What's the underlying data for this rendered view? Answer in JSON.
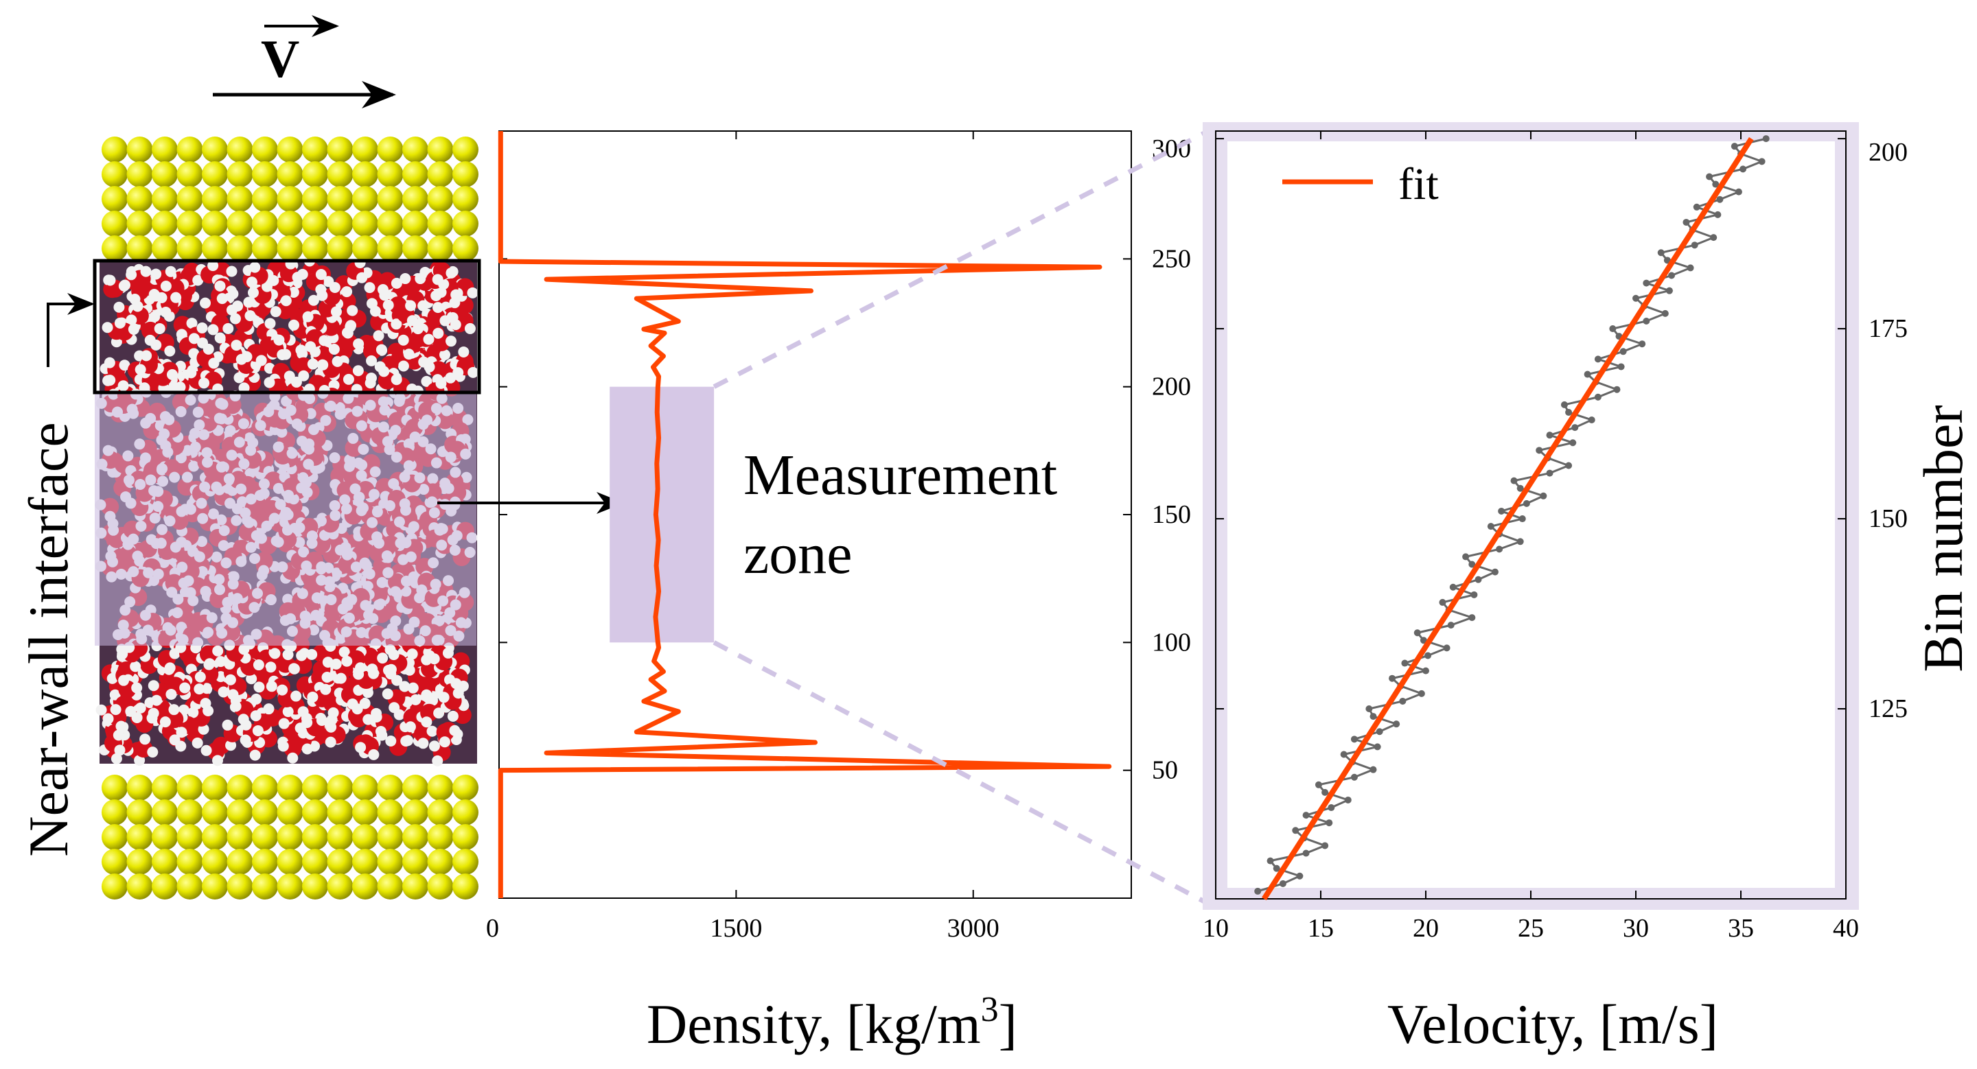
{
  "illustration": {
    "velocity_symbol": "V",
    "near_wall_label": "Near-wall interface",
    "measurement_label_line1": "Measurement",
    "measurement_label_line2": "zone",
    "colors": {
      "gold": "#e8e800",
      "oxygen": "#d4101c",
      "hydrogen": "#f2f2f2",
      "zone": "#d6c8e6",
      "frame": "#e6dff0"
    }
  },
  "chart_data": [
    {
      "type": "line",
      "name": "density-profile",
      "xlabel_main": "Density, [kg/m",
      "xlabel_sup": "3",
      "xlabel_end": "]",
      "ylabel": "",
      "xlim": [
        0,
        4000
      ],
      "ylim": [
        0,
        300
      ],
      "xticks": [
        0,
        1500,
        3000
      ],
      "yticks": [
        50,
        100,
        150,
        200,
        250,
        300
      ],
      "xtick_labels": [
        "0",
        "1500",
        "3000"
      ],
      "ytick_labels": [
        "50",
        "100",
        "150",
        "200",
        "250",
        "300"
      ],
      "y_axis_side": "right",
      "color": "#ff4500",
      "measurement_zone": {
        "y": [
          100,
          200
        ],
        "density": [
          700,
          1360
        ]
      },
      "points": [
        [
          10,
          0
        ],
        [
          10,
          50
        ],
        [
          3860,
          51.5
        ],
        [
          300,
          56.8
        ],
        [
          2000,
          60.9
        ],
        [
          870,
          65
        ],
        [
          1135,
          73
        ],
        [
          916,
          77
        ],
        [
          1047,
          81
        ],
        [
          960,
          85.5
        ],
        [
          1040,
          88.6
        ],
        [
          980,
          92.7
        ],
        [
          1010,
          98
        ],
        [
          1005,
          100
        ],
        [
          990,
          110
        ],
        [
          1010,
          120
        ],
        [
          995,
          130
        ],
        [
          1008,
          140
        ],
        [
          992,
          150
        ],
        [
          1004,
          160
        ],
        [
          998,
          170
        ],
        [
          1010,
          180
        ],
        [
          1000,
          190
        ],
        [
          1005,
          200
        ],
        [
          1010,
          204
        ],
        [
          975,
          207.7
        ],
        [
          1040,
          212
        ],
        [
          960,
          216
        ],
        [
          1047,
          221
        ],
        [
          916,
          222.5
        ],
        [
          1135,
          225.6
        ],
        [
          870,
          234.5
        ],
        [
          1974,
          237.5
        ],
        [
          300,
          242
        ],
        [
          3800,
          246.8
        ],
        [
          10,
          249
        ],
        [
          10,
          300
        ]
      ]
    },
    {
      "type": "line",
      "name": "velocity-profile",
      "xlabel": "Velocity, [m/s]",
      "ylabel": "Bin number",
      "xlim": [
        10,
        40
      ],
      "ylim": [
        100,
        201
      ],
      "xticks": [
        10,
        15,
        20,
        25,
        30,
        35,
        40
      ],
      "yticks": [
        125,
        150,
        175,
        200
      ],
      "xtick_labels": [
        "10",
        "15",
        "20",
        "25",
        "30",
        "35",
        "40"
      ],
      "ytick_labels": [
        "125",
        "150",
        "175",
        "200"
      ],
      "y_axis_side": "right",
      "legend": {
        "label": "fit",
        "position": "top-left"
      },
      "fit": {
        "color": "#ff4500",
        "from": [
          12.3,
          100
        ],
        "to": [
          35.5,
          200
        ]
      },
      "data_color": "#666666",
      "bins_start": 101,
      "velocities": [
        12.0,
        13.2,
        14.0,
        12.9,
        12.6,
        14.3,
        15.2,
        14.2,
        13.8,
        15.4,
        14.3,
        15.5,
        16.3,
        15.2,
        14.9,
        16.6,
        17.5,
        16.5,
        16.1,
        17.7,
        16.6,
        17.8,
        18.6,
        17.5,
        17.3,
        18.9,
        19.8,
        18.8,
        18.4,
        20.0,
        19.0,
        20.1,
        21.0,
        19.9,
        19.6,
        21.2,
        22.2,
        21.1,
        20.8,
        22.3,
        21.3,
        22.5,
        23.3,
        22.2,
        21.9,
        23.5,
        24.5,
        23.5,
        23.1,
        24.6,
        23.6,
        24.8,
        25.6,
        24.5,
        24.2,
        25.9,
        26.8,
        25.8,
        25.4,
        27.0,
        25.9,
        27.1,
        27.9,
        26.8,
        26.6,
        28.2,
        29.1,
        28.1,
        27.7,
        29.3,
        28.2,
        29.4,
        30.3,
        29.2,
        28.9,
        30.5,
        31.4,
        30.4,
        30.0,
        31.6,
        30.5,
        31.7,
        32.6,
        31.5,
        31.2,
        32.8,
        33.7,
        32.7,
        32.4,
        33.9,
        32.9,
        34.0,
        34.9,
        33.8,
        33.5,
        35.1,
        36.0,
        35.0,
        34.7,
        36.2
      ]
    }
  ]
}
